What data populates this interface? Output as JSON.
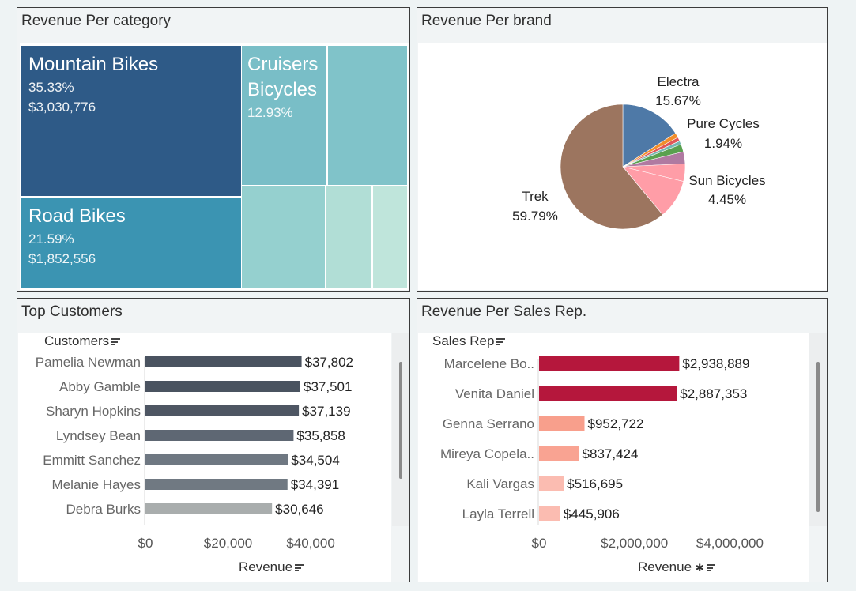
{
  "panels": {
    "category": {
      "title": "Revenue Per category"
    },
    "brand": {
      "title": "Revenue Per brand"
    },
    "customers": {
      "title": "Top Customers",
      "header": "Customers",
      "axis_title": "Revenue"
    },
    "salesrep": {
      "title": "Revenue Per Sales Rep.",
      "header": "Sales Rep",
      "axis_title": "Revenue"
    }
  },
  "treemap": {
    "mountain": {
      "name": "Mountain Bikes",
      "pct": "35.33%",
      "value": "$3,030,776",
      "color": "#2e5a87"
    },
    "road": {
      "name": "Road Bikes",
      "pct": "21.59%",
      "value": "$1,852,556",
      "color": "#3b94b2"
    },
    "cruisers": {
      "name": "Cruisers Bicycles",
      "name_line1": "Cruisers",
      "name_line2": "Bicycles",
      "pct": "12.93%",
      "color": "#79bec7"
    },
    "unlabeled_colors": [
      "#80c3c9",
      "#95d0cf",
      "#a8dbd5",
      "#b1ded6",
      "#bfe5db"
    ]
  },
  "chart_data": [
    {
      "type": "pie",
      "title": "Revenue Per brand",
      "slices": [
        {
          "label": "Electra",
          "value": 15.67,
          "display": "15.67%",
          "color": "#4e79a7"
        },
        {
          "label": "",
          "value": 1.2,
          "color": "#f28e2b"
        },
        {
          "label": "",
          "value": 1.0,
          "color": "#e15759"
        },
        {
          "label": "",
          "value": 0.9,
          "color": "#76b7b2"
        },
        {
          "label": "Pure Cycles",
          "value": 1.94,
          "display": "1.94%",
          "color": "#59a14f"
        },
        {
          "label": "",
          "value": 3.05,
          "color": "#b07aa1"
        },
        {
          "label": "Sun Bicycles",
          "value": 4.45,
          "display": "4.45%",
          "color": "#ff9da7"
        },
        {
          "label": "",
          "value": 10.0,
          "color": "#ff9da7"
        },
        {
          "label": "Trek",
          "value": 59.79,
          "display": "59.79%",
          "color": "#9c755f"
        }
      ]
    },
    {
      "type": "bar",
      "title": "Top Customers",
      "orientation": "horizontal",
      "categories": [
        "Pamelia Newman",
        "Abby Gamble",
        "Sharyn Hopkins",
        "Lyndsey Bean",
        "Emmitt Sanchez",
        "Melanie Hayes",
        "Debra Burks"
      ],
      "values": [
        37802,
        37501,
        37139,
        35858,
        34504,
        34391,
        30646
      ],
      "labels": [
        "$37,802",
        "$37,501",
        "$37,139",
        "$35,858",
        "$34,504",
        "$34,391",
        "$30,646"
      ],
      "colors": [
        "#4a5360",
        "#4a5360",
        "#4e5663",
        "#5e6773",
        "#6f7882",
        "#707982",
        "#a9adad"
      ],
      "xlabel": "Revenue",
      "xticks": [
        "$0",
        "$20,000",
        "$40,000"
      ],
      "xlim": [
        0,
        53000
      ]
    },
    {
      "type": "bar",
      "title": "Revenue Per Sales Rep.",
      "orientation": "horizontal",
      "categories": [
        "Marcelene Bo..",
        "Venita Daniel",
        "Genna Serrano",
        "Mireya Copela..",
        "Kali Vargas",
        "Layla Terrell"
      ],
      "values": [
        2938889,
        2887353,
        952722,
        837424,
        516695,
        445906
      ],
      "labels": [
        "$2,938,889",
        "$2,887,353",
        "$952,722",
        "$837,424",
        "$516,695",
        "$445,906"
      ],
      "colors": [
        "#b5173c",
        "#b5173c",
        "#f89f8c",
        "#f9a392",
        "#fbbcb1",
        "#fbbcb1"
      ],
      "xlabel": "Revenue",
      "xticks": [
        "$0",
        "$2,000,000",
        "$4,000,000"
      ],
      "xlim": [
        0,
        5600000
      ]
    }
  ]
}
